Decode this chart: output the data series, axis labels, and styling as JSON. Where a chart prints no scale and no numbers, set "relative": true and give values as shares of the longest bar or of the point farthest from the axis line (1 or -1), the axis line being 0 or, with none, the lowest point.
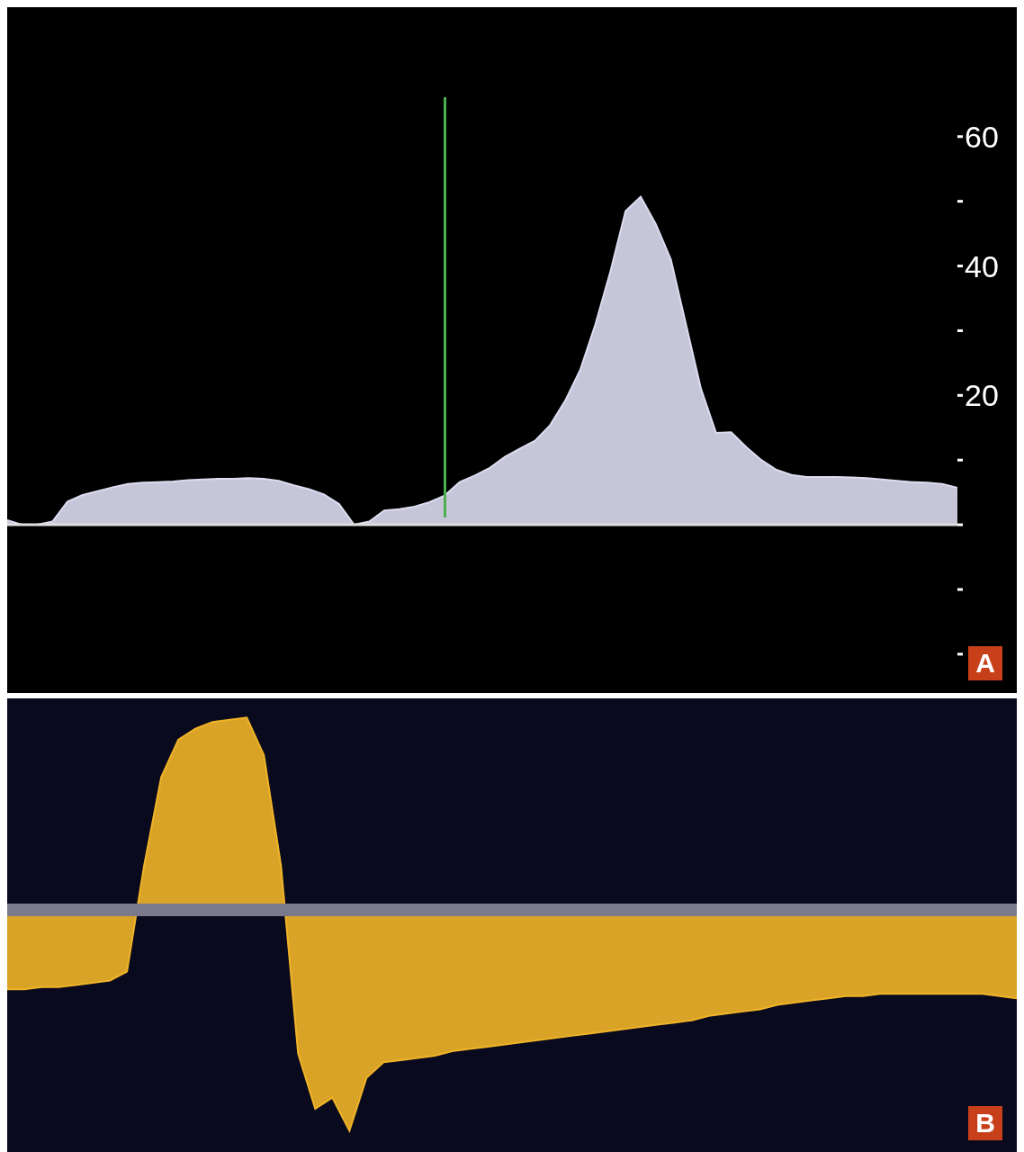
{
  "chart_data": [
    {
      "type": "area",
      "categories": [
        null,
        null,
        null,
        null,
        null,
        null,
        null,
        null,
        null,
        null,
        null,
        null,
        null,
        null,
        null,
        null,
        null,
        null,
        null,
        null,
        null,
        null,
        null,
        null,
        null,
        null,
        null,
        null,
        null,
        null,
        null,
        null,
        null,
        null,
        null,
        null,
        null,
        null,
        null,
        null,
        null,
        null,
        null,
        null,
        null,
        null,
        null,
        null,
        null,
        null,
        null,
        null,
        null,
        null,
        null,
        null,
        null,
        null,
        null,
        null,
        null,
        null,
        null,
        null
      ],
      "series": [
        {
          "color": "#dcdcf0",
          "values": [
            0.7,
            0,
            0,
            0.5,
            3.6,
            4.6,
            5.2,
            5.8,
            6.3,
            6.5,
            6.6,
            6.7,
            6.9,
            7.0,
            7.1,
            7.1,
            7.2,
            7.1,
            6.8,
            6.1,
            5.5,
            4.7,
            3.2,
            0,
            0.5,
            2.2,
            2.4,
            2.8,
            3.5,
            4.5,
            6.6,
            7.6,
            8.8,
            10.5,
            11.8,
            13,
            15.4,
            19.2,
            24,
            31,
            39.2,
            48.5,
            50.7,
            46.5,
            41,
            31,
            21,
            14.2,
            14.3,
            12,
            10,
            8.5,
            7.7,
            7.4,
            7.4,
            7.4,
            7.3,
            7.2,
            7.0,
            6.8,
            6.6,
            6.5,
            6.3,
            5.7
          ]
        }
      ],
      "ylim": [
        -26,
        80
      ],
      "yticks": [
        {
          "value": -20,
          "label": null
        },
        {
          "value": -10,
          "label": null
        },
        {
          "value": 0,
          "label": null
        },
        {
          "value": 10,
          "label": null
        },
        20,
        {
          "value": 30,
          "label": null
        },
        40,
        {
          "value": 50,
          "label": null
        },
        60
      ],
      "tick_labels": "y",
      "annotations": [
        "A"
      ]
    },
    {
      "type": "area",
      "relative": true,
      "categories": [
        null,
        null,
        null,
        null,
        null,
        null,
        null,
        null,
        null,
        null,
        null,
        null,
        null,
        null,
        null,
        null,
        null,
        null,
        null,
        null,
        null,
        null,
        null,
        null,
        null,
        null,
        null,
        null,
        null,
        null,
        null,
        null,
        null,
        null,
        null,
        null,
        null,
        null,
        null,
        null,
        null,
        null,
        null,
        null,
        null,
        null,
        null,
        null,
        null,
        null,
        null,
        null,
        null,
        null,
        null,
        null,
        null,
        null,
        null,
        null
      ],
      "series": [
        {
          "color": "#f0b428",
          "values": [
            -0.36,
            -0.36,
            -0.35,
            -0.35,
            -0.34,
            -0.33,
            -0.32,
            -0.28,
            0.2,
            0.6,
            0.77,
            0.82,
            0.85,
            0.86,
            0.87,
            0.7,
            0.2,
            -0.65,
            -0.9,
            -0.85,
            -1,
            -0.76,
            -0.69,
            -0.68,
            -0.67,
            -0.66,
            -0.64,
            -0.63,
            -0.62,
            -0.61,
            -0.6,
            -0.59,
            -0.58,
            -0.57,
            -0.56,
            -0.55,
            -0.54,
            -0.53,
            -0.52,
            -0.51,
            -0.5,
            -0.48,
            -0.47,
            -0.46,
            -0.45,
            -0.43,
            -0.42,
            -0.41,
            -0.4,
            -0.39,
            -0.39,
            -0.38,
            -0.38,
            -0.38,
            -0.38,
            -0.38,
            -0.38,
            -0.38,
            -0.39,
            -0.4
          ]
        }
      ],
      "tick_labels": false,
      "annotations": [
        "B"
      ]
    }
  ]
}
